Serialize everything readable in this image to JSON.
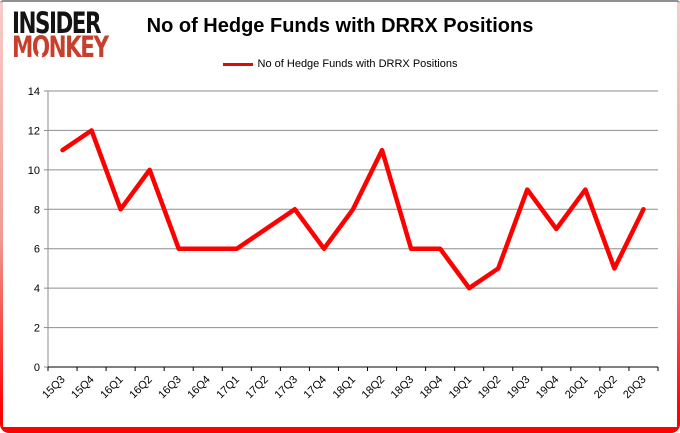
{
  "logo": {
    "line1": "INSIDER",
    "line2": "MONKEY"
  },
  "title": "No of Hedge Funds with DRRX Positions",
  "legend": {
    "label": "No of Hedge Funds with DRRX Positions"
  },
  "colors": {
    "line": "#fe0000",
    "legend_swatch": "#dd0a06",
    "grid": "#8e8e8e",
    "axis": "#000000",
    "tick_label": "#000000",
    "logo_black": "#131313",
    "logo_red": "#c7402e",
    "frame_red": "#ff0000",
    "frame_top_gray": "#8f8f8f"
  },
  "chart_data": {
    "type": "line",
    "title": "No of Hedge Funds with DRRX Positions",
    "categories": [
      "15Q3",
      "15Q4",
      "16Q1",
      "16Q2",
      "16Q3",
      "16Q4",
      "17Q1",
      "17Q2",
      "17Q3",
      "17Q4",
      "18Q1",
      "18Q2",
      "18Q3",
      "18Q4",
      "19Q1",
      "19Q2",
      "19Q3",
      "19Q4",
      "20Q1",
      "20Q2",
      "20Q3"
    ],
    "series": [
      {
        "name": "No of Hedge Funds with DRRX Positions",
        "values": [
          11,
          12,
          8,
          10,
          6,
          6,
          6,
          7,
          8,
          6,
          8,
          11,
          6,
          6,
          4,
          5,
          9,
          7,
          9,
          5,
          8
        ]
      }
    ],
    "xlabel": "",
    "ylabel": "",
    "ylim": [
      0,
      14
    ],
    "ytick_step": 2,
    "grid": true,
    "legend_position": "top"
  }
}
